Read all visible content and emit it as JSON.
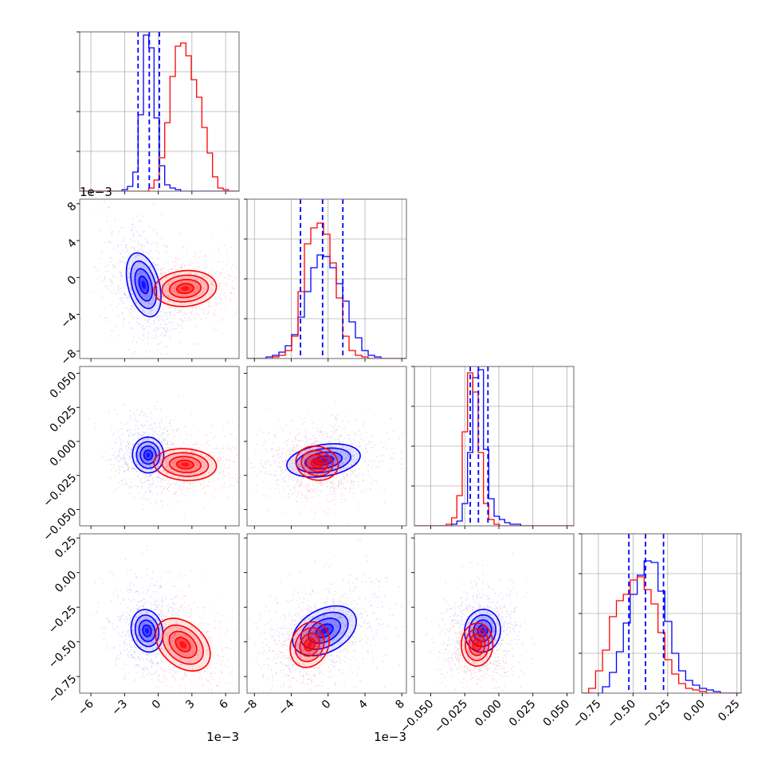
{
  "chart_data": {
    "type": "corner",
    "series": [
      {
        "name": "",
        "color": "#0000ff"
      },
      {
        "name": "",
        "color": "#ff0000"
      }
    ],
    "grid": true,
    "parameters": [
      {
        "range": [
          -7,
          7.2
        ],
        "ticks": [
          -6,
          -3,
          0,
          3,
          6
        ],
        "tick_labels": [
          "−6",
          "−3",
          "0",
          "3",
          "6"
        ],
        "offset_label": "1e−3",
        "quantile_lines": [
          -1.8,
          -0.8,
          0.1
        ],
        "hist": {
          "blue": [
            0,
            0,
            0,
            0,
            0,
            0,
            0,
            0,
            0.01,
            0.03,
            0.12,
            0.48,
            0.98,
            0.9,
            0.46,
            0.16,
            0.04,
            0.02,
            0.01,
            0,
            0,
            0,
            0,
            0,
            0,
            0,
            0,
            0,
            0,
            0
          ],
          "red": [
            0,
            0,
            0,
            0,
            0,
            0,
            0,
            0,
            0,
            0,
            0,
            0,
            0,
            0.02,
            0.07,
            0.21,
            0.43,
            0.72,
            0.91,
            0.93,
            0.85,
            0.7,
            0.59,
            0.4,
            0.24,
            0.09,
            0.02,
            0.01,
            0,
            0
          ]
        }
      },
      {
        "range": [
          -8.8,
          8.5
        ],
        "ticks": [
          -8,
          -4,
          0,
          4,
          8
        ],
        "tick_labels": [
          "−8",
          "−4",
          "0",
          "4",
          "8"
        ],
        "offset_label": "1e−3",
        "quantile_lines": [
          -3,
          -0.6,
          1.6
        ],
        "hist": {
          "blue": [
            0,
            0,
            0,
            0.01,
            0.02,
            0.04,
            0.08,
            0.15,
            0.26,
            0.42,
            0.57,
            0.65,
            0.64,
            0.57,
            0.47,
            0.36,
            0.23,
            0.13,
            0.05,
            0.02,
            0.01,
            0,
            0,
            0,
            0
          ],
          "red": [
            0,
            0,
            0,
            0,
            0.01,
            0.02,
            0.05,
            0.14,
            0.42,
            0.72,
            0.82,
            0.85,
            0.78,
            0.6,
            0.38,
            0.14,
            0.05,
            0.02,
            0.01,
            0,
            0,
            0,
            0,
            0,
            0
          ]
        }
      },
      {
        "range": [
          -0.062,
          0.055
        ],
        "ticks": [
          -0.05,
          -0.025,
          0,
          0.025,
          0.05
        ],
        "tick_labels": [
          "−0.050",
          "−0.025",
          "0.000",
          "0.025",
          "0.050"
        ],
        "offset_label": "",
        "quantile_lines": [
          -0.021,
          -0.015,
          -0.008
        ],
        "hist": {
          "blue": [
            0,
            0,
            0,
            0,
            0,
            0,
            0,
            0.01,
            0.03,
            0.14,
            0.46,
            0.93,
            0.98,
            0.48,
            0.17,
            0.06,
            0.04,
            0.02,
            0.01,
            0.01,
            0,
            0,
            0,
            0,
            0,
            0,
            0,
            0,
            0,
            0
          ],
          "red": [
            0,
            0,
            0,
            0,
            0,
            0,
            0.01,
            0.05,
            0.19,
            0.59,
            0.96,
            0.84,
            0.46,
            0.14,
            0.04,
            0.01,
            0,
            0,
            0,
            0,
            0,
            0,
            0,
            0,
            0,
            0,
            0,
            0,
            0,
            0
          ]
        }
      },
      {
        "range": [
          -0.87,
          0.28
        ],
        "ticks": [
          -0.75,
          -0.5,
          -0.25,
          0,
          0.25
        ],
        "tick_labels": [
          "−0.75",
          "−0.50",
          "−0.25",
          "0.00",
          "0.25"
        ],
        "offset_label": "",
        "quantile_lines": [
          -0.53,
          -0.41,
          -0.28
        ],
        "hist": {
          "blue": [
            0,
            0,
            0,
            0.04,
            0.13,
            0.26,
            0.44,
            0.62,
            0.74,
            0.83,
            0.82,
            0.64,
            0.45,
            0.25,
            0.14,
            0.08,
            0.05,
            0.03,
            0.02,
            0.01,
            0,
            0,
            0
          ],
          "red": [
            0,
            0.03,
            0.14,
            0.27,
            0.48,
            0.58,
            0.62,
            0.71,
            0.73,
            0.65,
            0.56,
            0.38,
            0.21,
            0.12,
            0.06,
            0.03,
            0.02,
            0.01,
            0,
            0,
            0,
            0,
            0
          ]
        }
      }
    ],
    "pairs": [
      {
        "row": 1,
        "col": 0,
        "blue": {
          "center": [
            -1.3,
            -0.8
          ],
          "sigma": [
            0.9,
            2.3
          ],
          "tilt": -15
        },
        "red": {
          "center": [
            2.4,
            -1.2
          ],
          "sigma": [
            1.8,
            1.25
          ],
          "tilt": -5
        }
      },
      {
        "row": 2,
        "col": 0,
        "blue": {
          "center": [
            -0.9,
            -0.01
          ],
          "sigma": [
            0.9,
            0.0085
          ],
          "tilt": -5
        },
        "red": {
          "center": [
            2.4,
            -0.017
          ],
          "sigma": [
            1.8,
            0.0075
          ],
          "tilt": 4
        }
      },
      {
        "row": 2,
        "col": 1,
        "blue": {
          "center": [
            -0.5,
            -0.014
          ],
          "sigma": [
            2.6,
            0.0075
          ],
          "tilt": -9
        },
        "red": {
          "center": [
            -1.2,
            -0.016
          ],
          "sigma": [
            1.5,
            0.008
          ],
          "tilt": 12
        }
      },
      {
        "row": 3,
        "col": 0,
        "blue": {
          "center": [
            -1.0,
            -0.42
          ],
          "sigma": [
            0.9,
            0.1
          ],
          "tilt": -12
        },
        "red": {
          "center": [
            2.2,
            -0.52
          ],
          "sigma": [
            1.8,
            0.1
          ],
          "tilt": 42
        }
      },
      {
        "row": 3,
        "col": 1,
        "blue": {
          "center": [
            -0.4,
            -0.42
          ],
          "sigma": [
            2.4,
            0.1
          ],
          "tilt": -28
        },
        "red": {
          "center": [
            -2.0,
            -0.52
          ],
          "sigma": [
            1.3,
            0.11
          ],
          "tilt": 25
        }
      },
      {
        "row": 3,
        "col": 2,
        "blue": {
          "center": [
            -0.012,
            -0.42
          ],
          "sigma": [
            0.0085,
            0.1
          ],
          "tilt": 8
        },
        "red": {
          "center": [
            -0.016,
            -0.52
          ],
          "sigma": [
            0.0075,
            0.1
          ],
          "tilt": 2
        }
      }
    ]
  }
}
